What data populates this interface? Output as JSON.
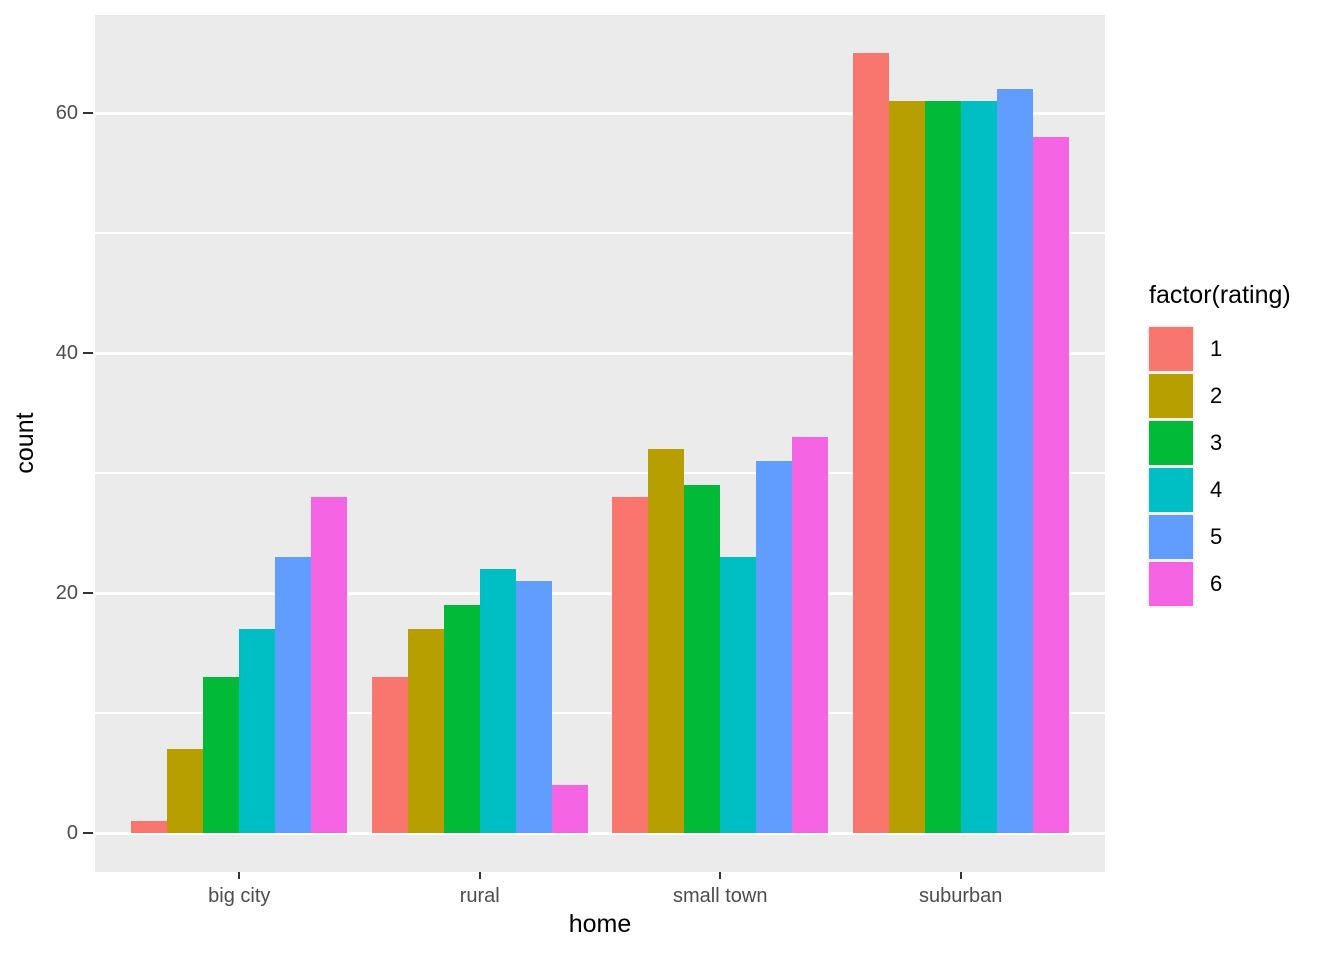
{
  "chart_data": {
    "type": "bar",
    "title": "",
    "xlabel": "home",
    "ylabel": "count",
    "categories": [
      "big city",
      "rural",
      "small town",
      "suburban"
    ],
    "series": [
      {
        "name": "1",
        "color": "#F8766D",
        "values": [
          1,
          13,
          28,
          65
        ]
      },
      {
        "name": "2",
        "color": "#B79F00",
        "values": [
          7,
          17,
          32,
          61
        ]
      },
      {
        "name": "3",
        "color": "#00BA38",
        "values": [
          13,
          19,
          29,
          61
        ]
      },
      {
        "name": "4",
        "color": "#00BFC4",
        "values": [
          17,
          22,
          23,
          61
        ]
      },
      {
        "name": "5",
        "color": "#619CFF",
        "values": [
          23,
          21,
          31,
          62
        ]
      },
      {
        "name": "6",
        "color": "#F564E3",
        "values": [
          28,
          4,
          33,
          58
        ]
      }
    ],
    "legend": {
      "title": "factor(rating)",
      "position": "right",
      "entries": [
        "1",
        "2",
        "3",
        "4",
        "5",
        "6"
      ]
    },
    "y_axis": {
      "ticks": [
        0,
        20,
        40,
        60
      ],
      "minor_ticks": [
        10,
        30,
        50
      ],
      "range": [
        0,
        65
      ]
    },
    "grid": true,
    "colors": {
      "panel_background": "#EBEBEB",
      "gridline": "#FFFFFF",
      "tick_label": "#4D4D4D",
      "axis_title": "#000000",
      "tick_mark": "#333333",
      "figure_background": "#FFFFFF"
    }
  }
}
